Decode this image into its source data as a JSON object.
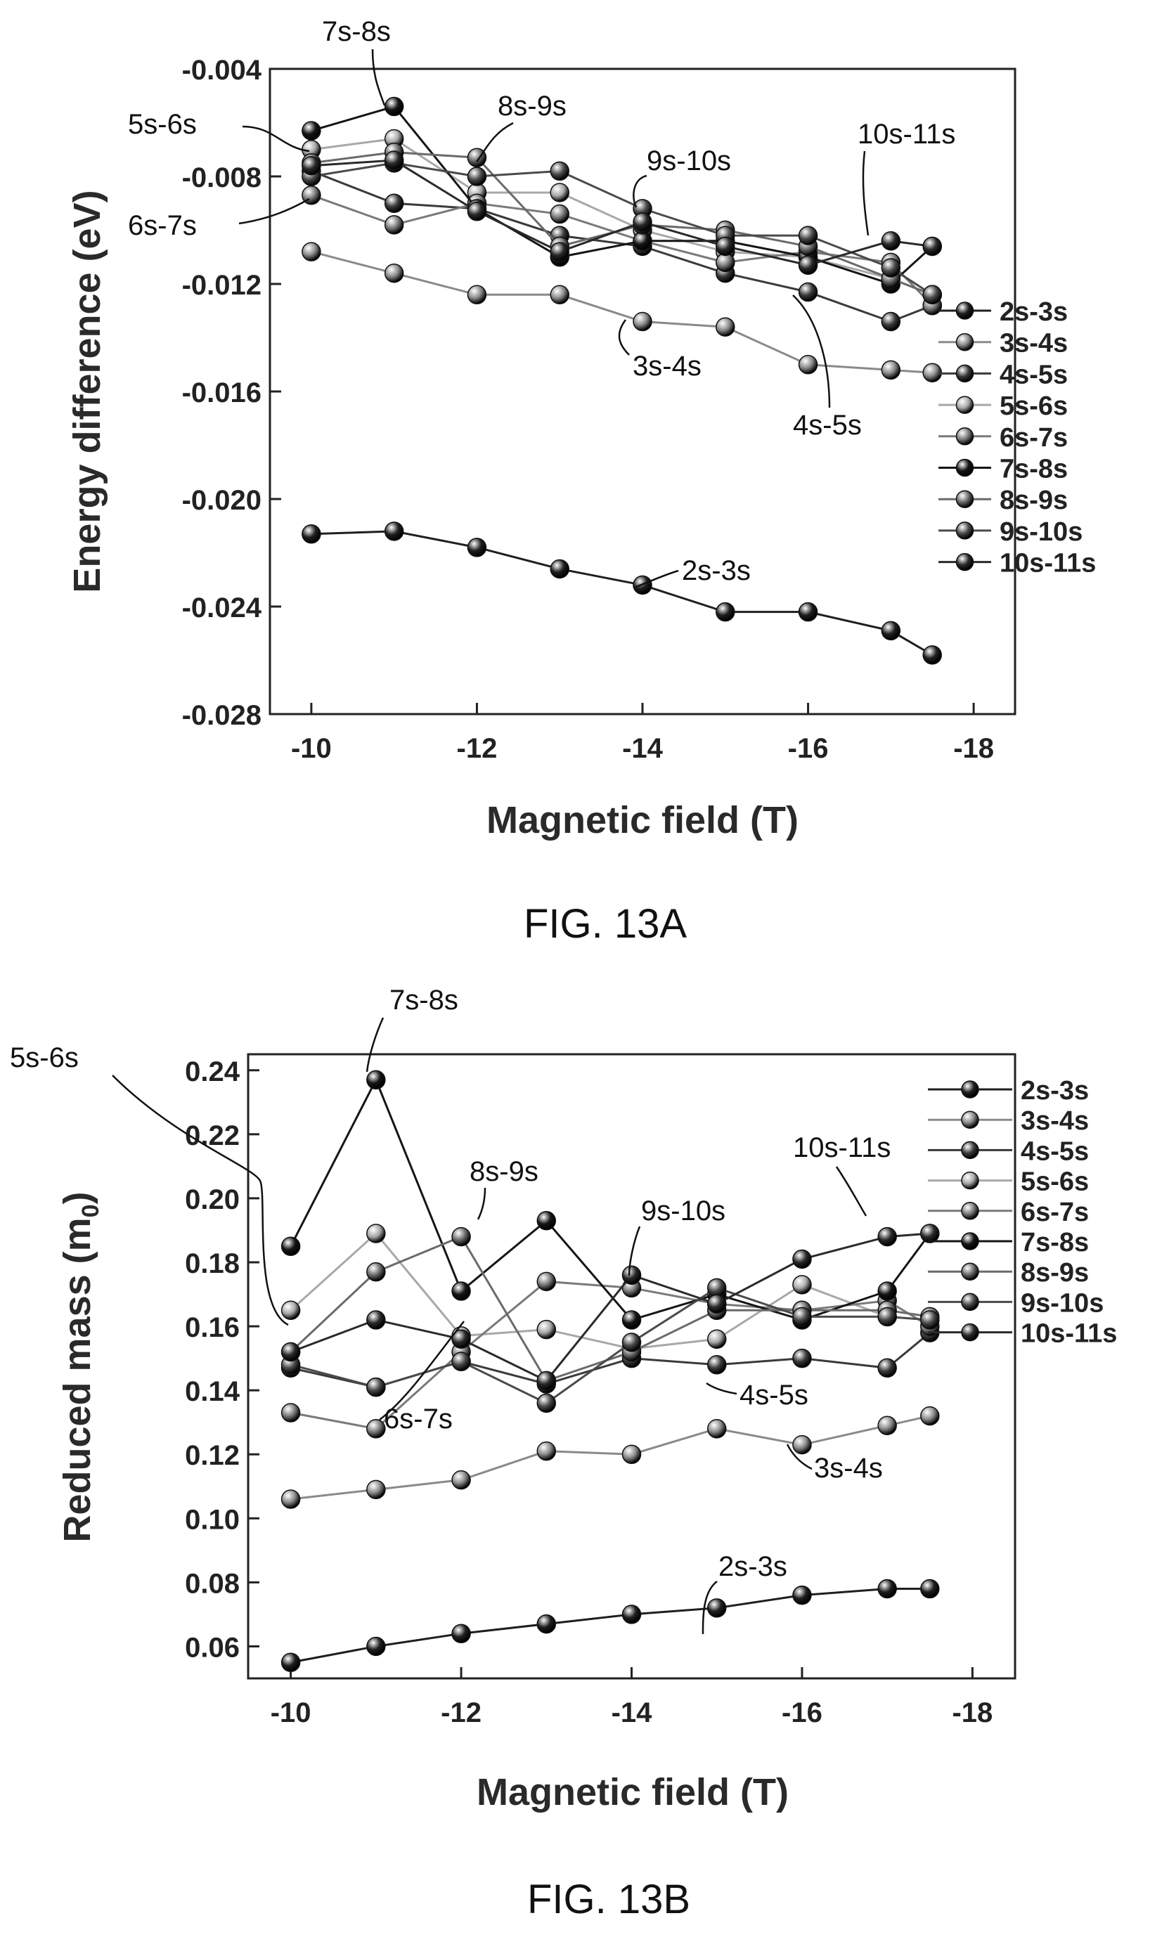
{
  "figures": [
    {
      "caption": "FIG. 13A"
    },
    {
      "caption": "FIG. 13B"
    }
  ],
  "chart_data": [
    {
      "type": "line",
      "title": "",
      "xlabel": "Magnetic field (T)",
      "ylabel": "Energy difference (eV)",
      "xlim": [
        -9.5,
        -18.5
      ],
      "ylim": [
        -0.028,
        -0.004
      ],
      "xticks": [
        -10,
        -12,
        -14,
        -16,
        -18
      ],
      "yticks": [
        -0.028,
        -0.024,
        -0.02,
        -0.016,
        -0.012,
        -0.008,
        -0.004
      ],
      "ytick_decimals": 3,
      "legend_position": "right",
      "colors": [
        "#1f1f1f",
        "#8a8a8a",
        "#3a3a3a",
        "#a8a8a8",
        "#7a7a7a",
        "#151515",
        "#6a6a6a",
        "#4a4a4a",
        "#2a2a2a"
      ],
      "x": [
        -10,
        -11,
        -12,
        -13,
        -14,
        -15,
        -16,
        -17,
        -17.5
      ],
      "series": [
        {
          "name": "2s-3s",
          "values": [
            -0.0213,
            -0.0212,
            -0.0218,
            -0.0226,
            -0.0232,
            -0.0242,
            -0.0242,
            -0.0249,
            -0.0258
          ]
        },
        {
          "name": "3s-4s",
          "values": [
            -0.0108,
            -0.0116,
            -0.0124,
            -0.0124,
            -0.0134,
            -0.0136,
            -0.015,
            -0.0152,
            -0.0153
          ]
        },
        {
          "name": "4s-5s",
          "values": [
            -0.0078,
            -0.009,
            -0.0092,
            -0.0102,
            -0.0106,
            -0.0116,
            -0.0123,
            -0.0134,
            -0.0128
          ]
        },
        {
          "name": "5s-6s",
          "values": [
            -0.007,
            -0.0066,
            -0.0086,
            -0.0086,
            -0.01,
            -0.0108,
            -0.011,
            -0.0118,
            -0.0124
          ]
        },
        {
          "name": "6s-7s",
          "values": [
            -0.0087,
            -0.0098,
            -0.009,
            -0.0094,
            -0.0104,
            -0.0112,
            -0.0108,
            -0.0112,
            -0.0128
          ]
        },
        {
          "name": "7s-8s",
          "values": [
            -0.0063,
            -0.0054,
            -0.0092,
            -0.011,
            -0.0104,
            -0.0104,
            -0.011,
            -0.012,
            -0.0106
          ]
        },
        {
          "name": "8s-9s",
          "values": [
            -0.0075,
            -0.0071,
            -0.0073,
            -0.0106,
            -0.0098,
            -0.01,
            -0.0106,
            -0.0118,
            -0.0124
          ]
        },
        {
          "name": "9s-10s",
          "values": [
            -0.008,
            -0.0075,
            -0.008,
            -0.0078,
            -0.0092,
            -0.0102,
            -0.0102,
            -0.0114,
            -0.0124
          ]
        },
        {
          "name": "10s-11s",
          "values": [
            -0.0076,
            -0.0074,
            -0.0093,
            -0.0108,
            -0.0097,
            -0.0106,
            -0.0113,
            -0.0104,
            -0.0106
          ]
        }
      ],
      "annotations": [
        {
          "text": "7s-8s"
        },
        {
          "text": "5s-6s"
        },
        {
          "text": "8s-9s"
        },
        {
          "text": "9s-10s"
        },
        {
          "text": "10s-11s"
        },
        {
          "text": "6s-7s"
        },
        {
          "text": "3s-4s"
        },
        {
          "text": "4s-5s"
        },
        {
          "text": "2s-3s"
        }
      ]
    },
    {
      "type": "line",
      "title": "",
      "xlabel": "Magnetic field (T)",
      "ylabel": "Reduced mass (m",
      "ylabel_sub": "0",
      "ylabel_close": ")",
      "xlim": [
        -9.5,
        -18.5
      ],
      "ylim": [
        0.05,
        0.245
      ],
      "xticks": [
        -10,
        -12,
        -14,
        -16,
        -18
      ],
      "yticks": [
        0.06,
        0.08,
        0.1,
        0.12,
        0.14,
        0.16,
        0.18,
        0.2,
        0.22,
        0.24
      ],
      "ytick_decimals": 2,
      "legend_position": "top-right",
      "colors": [
        "#1f1f1f",
        "#8a8a8a",
        "#3a3a3a",
        "#a8a8a8",
        "#7a7a7a",
        "#151515",
        "#6a6a6a",
        "#4a4a4a",
        "#2a2a2a"
      ],
      "x": [
        -10,
        -11,
        -12,
        -13,
        -14,
        -15,
        -16,
        -17,
        -17.5
      ],
      "series": [
        {
          "name": "2s-3s",
          "values": [
            0.055,
            0.06,
            0.064,
            0.067,
            0.07,
            0.072,
            0.076,
            0.078,
            0.078
          ]
        },
        {
          "name": "3s-4s",
          "values": [
            0.106,
            0.109,
            0.112,
            0.121,
            0.12,
            0.128,
            0.123,
            0.129,
            0.132
          ]
        },
        {
          "name": "4s-5s",
          "values": [
            0.147,
            0.141,
            0.149,
            0.142,
            0.15,
            0.148,
            0.15,
            0.147,
            0.158
          ]
        },
        {
          "name": "5s-6s",
          "values": [
            0.165,
            0.189,
            0.157,
            0.159,
            0.153,
            0.156,
            0.173,
            0.163,
            0.162
          ]
        },
        {
          "name": "6s-7s",
          "values": [
            0.133,
            0.128,
            0.152,
            0.174,
            0.172,
            0.167,
            0.165,
            0.168,
            0.16
          ]
        },
        {
          "name": "7s-8s",
          "values": [
            0.185,
            0.237,
            0.171,
            0.193,
            0.162,
            0.17,
            0.162,
            0.171,
            0.189
          ]
        },
        {
          "name": "8s-9s",
          "values": [
            0.152,
            0.177,
            0.188,
            0.143,
            0.152,
            0.165,
            0.165,
            0.165,
            0.163
          ]
        },
        {
          "name": "9s-10s",
          "values": [
            0.148,
            0.141,
            0.149,
            0.136,
            0.155,
            0.172,
            0.163,
            0.163,
            0.162
          ]
        },
        {
          "name": "10s-11s",
          "values": [
            0.152,
            0.162,
            0.156,
            0.143,
            0.176,
            0.167,
            0.181,
            0.188,
            0.189
          ]
        }
      ],
      "annotations": [
        {
          "text": "7s-8s"
        },
        {
          "text": "5s-6s"
        },
        {
          "text": "8s-9s"
        },
        {
          "text": "9s-10s"
        },
        {
          "text": "10s-11s"
        },
        {
          "text": "6s-7s"
        },
        {
          "text": "4s-5s"
        },
        {
          "text": "3s-4s"
        },
        {
          "text": "2s-3s"
        }
      ]
    }
  ]
}
